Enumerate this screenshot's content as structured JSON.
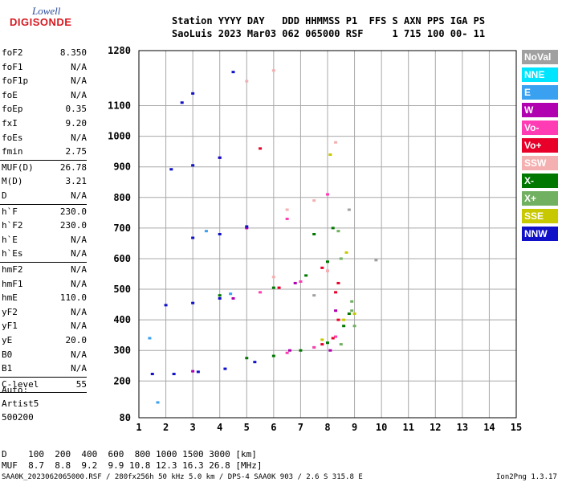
{
  "logo": {
    "line1": "Lowell",
    "line2": "DIGISONDE"
  },
  "header": {
    "line1": "Station YYYY DAY   DDD HHMMSS P1  FFS S AXN PPS IGA PS",
    "line2": "SaoLuis 2023 Mar03 062 065000 RSF     1 715 100 00- 11"
  },
  "params": [
    {
      "name": "foF2",
      "value": "8.350"
    },
    {
      "name": "foF1",
      "value": "N/A"
    },
    {
      "name": "foF1p",
      "value": "N/A"
    },
    {
      "name": "foE",
      "value": "N/A"
    },
    {
      "name": "foEp",
      "value": "0.35"
    },
    {
      "name": "fxI",
      "value": "9.20"
    },
    {
      "name": "foEs",
      "value": "N/A"
    },
    {
      "name": "fmin",
      "value": "2.75"
    },
    {
      "name": "MUF(D)",
      "value": "26.78"
    },
    {
      "name": "M(D)",
      "value": "3.21"
    },
    {
      "name": "D",
      "value": "N/A"
    },
    {
      "name": "h`F",
      "value": "230.0"
    },
    {
      "name": "h`F2",
      "value": "230.0"
    },
    {
      "name": "h`E",
      "value": "N/A"
    },
    {
      "name": "h`Es",
      "value": "N/A"
    },
    {
      "name": "hmF2",
      "value": "N/A"
    },
    {
      "name": "hmF1",
      "value": "N/A"
    },
    {
      "name": "hmE",
      "value": "110.0"
    },
    {
      "name": "yF2",
      "value": "N/A"
    },
    {
      "name": "yF1",
      "value": "N/A"
    },
    {
      "name": "yE",
      "value": "20.0"
    },
    {
      "name": "B0",
      "value": "N/A"
    },
    {
      "name": "B1",
      "value": "N/A"
    },
    {
      "name": "C-level",
      "value": "55"
    }
  ],
  "auto_block": {
    "line1": "Auto:",
    "line2": "Artist5",
    "line3": "500200"
  },
  "legend": [
    {
      "label": "NoVal",
      "color": "#a0a0a0"
    },
    {
      "label": "NNE",
      "color": "#00e5ff"
    },
    {
      "label": "E",
      "color": "#3aa0f0"
    },
    {
      "label": "W",
      "color": "#b000b0"
    },
    {
      "label": "Vo-",
      "color": "#ff3cb4"
    },
    {
      "label": "Vo+",
      "color": "#e8002a"
    },
    {
      "label": "SSW",
      "color": "#f4b0b0"
    },
    {
      "label": "X-",
      "color": "#007800"
    },
    {
      "label": "X+",
      "color": "#70b060"
    },
    {
      "label": "SSE",
      "color": "#c8c800"
    },
    {
      "label": "NNW",
      "color": "#1010c8"
    }
  ],
  "footer": {
    "d_row": "D    100  200  400  600  800 1000 1500 3000 [km]",
    "muf_row": "MUF  8.7  8.8  9.2  9.9 10.8 12.3 16.3 26.8 [MHz]",
    "file_info": "SAA0K_2023062065000.RSF / 280fx256h 50 kHz 5.0 km / DPS-4 SAA0K 903 / 2.6 S 315.8 E",
    "version": "Ion2Png 1.3.17"
  },
  "chart_data": {
    "type": "scatter",
    "title": "",
    "xlabel": "",
    "ylabel": "",
    "xlim": [
      1,
      15
    ],
    "ylim": [
      80,
      1280
    ],
    "x_ticks": [
      1,
      2,
      3,
      4,
      5,
      6,
      7,
      8,
      9,
      10,
      11,
      12,
      13,
      14,
      15
    ],
    "y_ticks": [
      80,
      200,
      300,
      400,
      500,
      600,
      700,
      800,
      900,
      1000,
      1100,
      1280
    ],
    "grid": true,
    "legend_position": "right",
    "series": [
      {
        "name": "X-",
        "color": "#007800",
        "points": [
          [
            5.0,
            275
          ],
          [
            6.0,
            282
          ],
          [
            7.0,
            300
          ],
          [
            8.0,
            325
          ],
          [
            8.6,
            380
          ],
          [
            8.8,
            420
          ],
          [
            4.0,
            480
          ],
          [
            6.0,
            505
          ],
          [
            7.2,
            545
          ],
          [
            8.0,
            590
          ],
          [
            7.5,
            680
          ],
          [
            8.2,
            700
          ]
        ]
      },
      {
        "name": "X+",
        "color": "#70b060",
        "points": [
          [
            7.5,
            310
          ],
          [
            8.5,
            320
          ],
          [
            9.0,
            380
          ],
          [
            8.9,
            430
          ],
          [
            8.9,
            460
          ],
          [
            8.5,
            600
          ],
          [
            8.4,
            690
          ]
        ]
      },
      {
        "name": "Vo-",
        "color": "#ff3cb4",
        "points": [
          [
            6.5,
            292
          ],
          [
            7.5,
            310
          ],
          [
            8.3,
            345
          ],
          [
            5.5,
            490
          ],
          [
            7.0,
            525
          ],
          [
            8.0,
            560
          ],
          [
            6.5,
            730
          ],
          [
            8.0,
            810
          ]
        ]
      },
      {
        "name": "Vo+",
        "color": "#e8002a",
        "points": [
          [
            7.8,
            320
          ],
          [
            8.2,
            340
          ],
          [
            8.4,
            400
          ],
          [
            8.3,
            490
          ],
          [
            8.4,
            520
          ],
          [
            6.2,
            505
          ],
          [
            7.8,
            570
          ],
          [
            5.5,
            960
          ]
        ]
      },
      {
        "name": "W",
        "color": "#b000b0",
        "points": [
          [
            3.0,
            232
          ],
          [
            6.6,
            300
          ],
          [
            8.1,
            300
          ],
          [
            8.3,
            430
          ],
          [
            4.5,
            470
          ],
          [
            6.8,
            520
          ],
          [
            5.0,
            700
          ],
          [
            4.0,
            930
          ]
        ]
      },
      {
        "name": "NNW",
        "color": "#1010c8",
        "points": [
          [
            1.5,
            223
          ],
          [
            2.3,
            223
          ],
          [
            3.2,
            230
          ],
          [
            4.2,
            240
          ],
          [
            5.3,
            262
          ],
          [
            2.0,
            448
          ],
          [
            3.0,
            455
          ],
          [
            4.0,
            470
          ],
          [
            3.0,
            668
          ],
          [
            4.0,
            680
          ],
          [
            5.0,
            705
          ],
          [
            2.2,
            892
          ],
          [
            3.0,
            905
          ],
          [
            4.0,
            930
          ],
          [
            2.6,
            1110
          ],
          [
            3.0,
            1140
          ],
          [
            4.5,
            1210
          ]
        ]
      },
      {
        "name": "SSE",
        "color": "#c8c800",
        "points": [
          [
            7.8,
            335
          ],
          [
            8.6,
            400
          ],
          [
            9.0,
            420
          ],
          [
            8.7,
            620
          ],
          [
            8.1,
            940
          ]
        ]
      },
      {
        "name": "SSW",
        "color": "#f4b0b0",
        "points": [
          [
            6.0,
            540
          ],
          [
            8.0,
            560
          ],
          [
            6.5,
            760
          ],
          [
            7.5,
            790
          ],
          [
            8.3,
            980
          ],
          [
            5.0,
            1180
          ],
          [
            6.0,
            1215
          ]
        ]
      },
      {
        "name": "E",
        "color": "#3aa0f0",
        "points": [
          [
            1.7,
            130
          ],
          [
            1.4,
            340
          ],
          [
            4.4,
            485
          ],
          [
            3.5,
            690
          ]
        ]
      },
      {
        "name": "NoVal",
        "color": "#a0a0a0",
        "points": [
          [
            7.5,
            480
          ],
          [
            9.8,
            595
          ],
          [
            8.8,
            760
          ]
        ]
      }
    ]
  }
}
